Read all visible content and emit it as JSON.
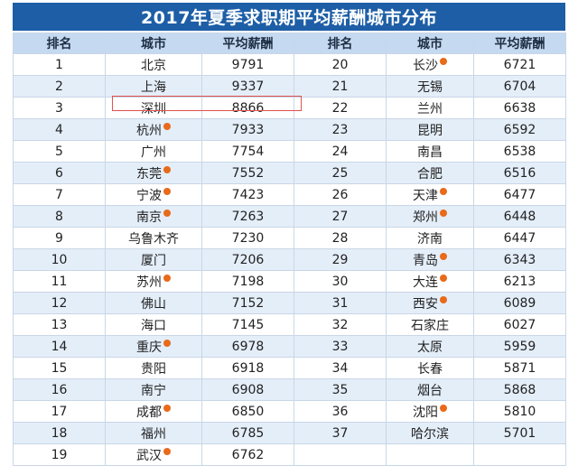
{
  "title": "2017年夏季求职期平均薪酬城市分布",
  "headers": [
    "排名",
    "城市",
    "平均薪酬",
    "排名",
    "城市",
    "平均薪酬"
  ],
  "left": [
    {
      "rank": "1",
      "city": "北京",
      "salary": "9791",
      "badge": false
    },
    {
      "rank": "2",
      "city": "上海",
      "salary": "9337",
      "badge": false
    },
    {
      "rank": "3",
      "city": "深圳",
      "salary": "8866",
      "badge": false
    },
    {
      "rank": "4",
      "city": "杭州",
      "salary": "7933",
      "badge": true
    },
    {
      "rank": "5",
      "city": "广州",
      "salary": "7754",
      "badge": false
    },
    {
      "rank": "6",
      "city": "东莞",
      "salary": "7552",
      "badge": true
    },
    {
      "rank": "7",
      "city": "宁波",
      "salary": "7423",
      "badge": true
    },
    {
      "rank": "8",
      "city": "南京",
      "salary": "7263",
      "badge": true
    },
    {
      "rank": "9",
      "city": "乌鲁木齐",
      "salary": "7230",
      "badge": false
    },
    {
      "rank": "10",
      "city": "厦门",
      "salary": "7206",
      "badge": false
    },
    {
      "rank": "11",
      "city": "苏州",
      "salary": "7198",
      "badge": true
    },
    {
      "rank": "12",
      "city": "佛山",
      "salary": "7152",
      "badge": false
    },
    {
      "rank": "13",
      "city": "海口",
      "salary": "7145",
      "badge": false
    },
    {
      "rank": "14",
      "city": "重庆",
      "salary": "6978",
      "badge": true
    },
    {
      "rank": "15",
      "city": "贵阳",
      "salary": "6918",
      "badge": false
    },
    {
      "rank": "16",
      "city": "南宁",
      "salary": "6908",
      "badge": false
    },
    {
      "rank": "17",
      "city": "成都",
      "salary": "6850",
      "badge": true
    },
    {
      "rank": "18",
      "city": "福州",
      "salary": "6785",
      "badge": false
    },
    {
      "rank": "19",
      "city": "武汉",
      "salary": "6762",
      "badge": true
    }
  ],
  "right": [
    {
      "rank": "20",
      "city": "长沙",
      "salary": "6721",
      "badge": true
    },
    {
      "rank": "21",
      "city": "无锡",
      "salary": "6704",
      "badge": false
    },
    {
      "rank": "22",
      "city": "兰州",
      "salary": "6638",
      "badge": false
    },
    {
      "rank": "23",
      "city": "昆明",
      "salary": "6592",
      "badge": false
    },
    {
      "rank": "24",
      "city": "南昌",
      "salary": "6538",
      "badge": false
    },
    {
      "rank": "25",
      "city": "合肥",
      "salary": "6516",
      "badge": false
    },
    {
      "rank": "26",
      "city": "天津",
      "salary": "6477",
      "badge": true
    },
    {
      "rank": "27",
      "city": "郑州",
      "salary": "6448",
      "badge": true
    },
    {
      "rank": "28",
      "city": "济南",
      "salary": "6447",
      "badge": false
    },
    {
      "rank": "29",
      "city": "青岛",
      "salary": "6343",
      "badge": true
    },
    {
      "rank": "30",
      "city": "大连",
      "salary": "6213",
      "badge": true
    },
    {
      "rank": "31",
      "city": "西安",
      "salary": "6089",
      "badge": true
    },
    {
      "rank": "32",
      "city": "石家庄",
      "salary": "6027",
      "badge": false
    },
    {
      "rank": "33",
      "city": "太原",
      "salary": "5959",
      "badge": false
    },
    {
      "rank": "34",
      "city": "长春",
      "salary": "5871",
      "badge": false
    },
    {
      "rank": "35",
      "city": "烟台",
      "salary": "5868",
      "badge": false
    },
    {
      "rank": "36",
      "city": "沈阳",
      "salary": "5810",
      "badge": true
    },
    {
      "rank": "37",
      "city": "哈尔滨",
      "salary": "5701",
      "badge": false
    }
  ],
  "colors": {
    "title_bg": "#1d5ea6",
    "header_bg": "#c5daf1",
    "row_alt_bg": "#e4eef9",
    "badge": "#e86a1a",
    "highlight_border": "#e05050"
  },
  "highlighted_city": "深圳",
  "badge_icon": "orange-dot-icon"
}
